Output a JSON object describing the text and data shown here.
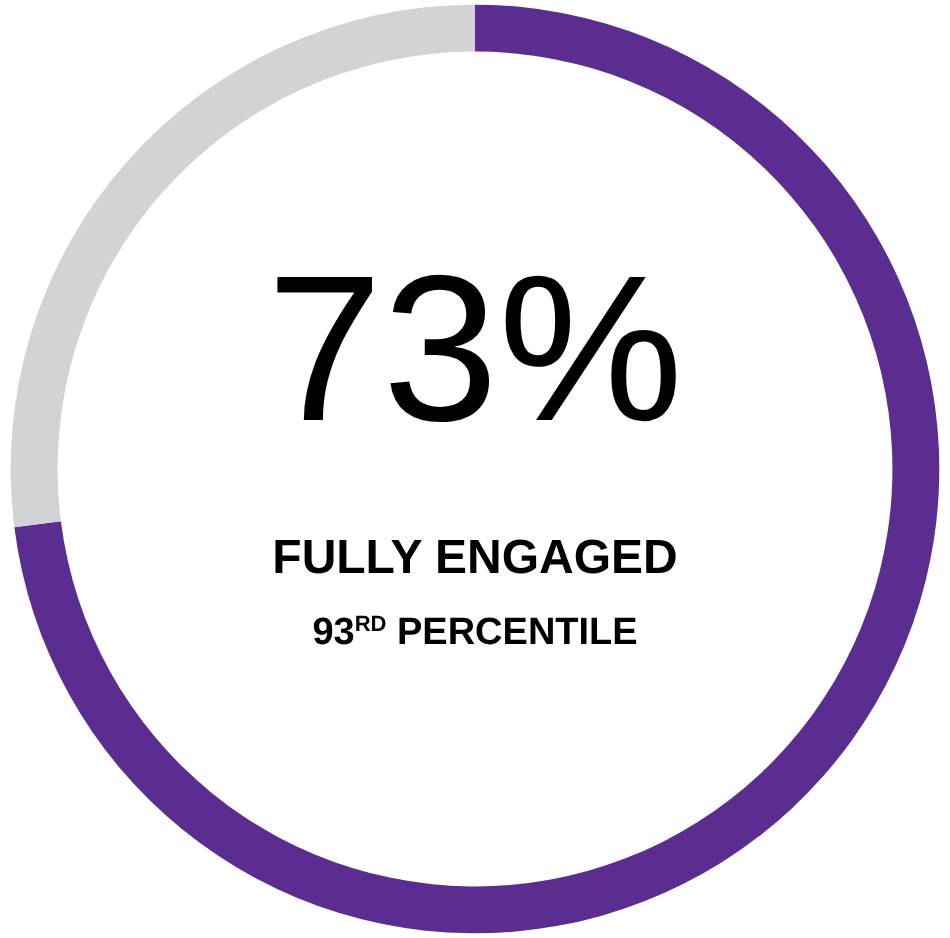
{
  "chart_data": {
    "type": "donut",
    "categories": [
      null,
      null
    ],
    "values": [
      73,
      27
    ],
    "colors": [
      "#5c2d91",
      "#d1d3d4"
    ],
    "annotations": [
      "73%",
      "FULLY ENGAGED",
      "93$^{RD}$ PERCENTILE"
    ]
  }
}
